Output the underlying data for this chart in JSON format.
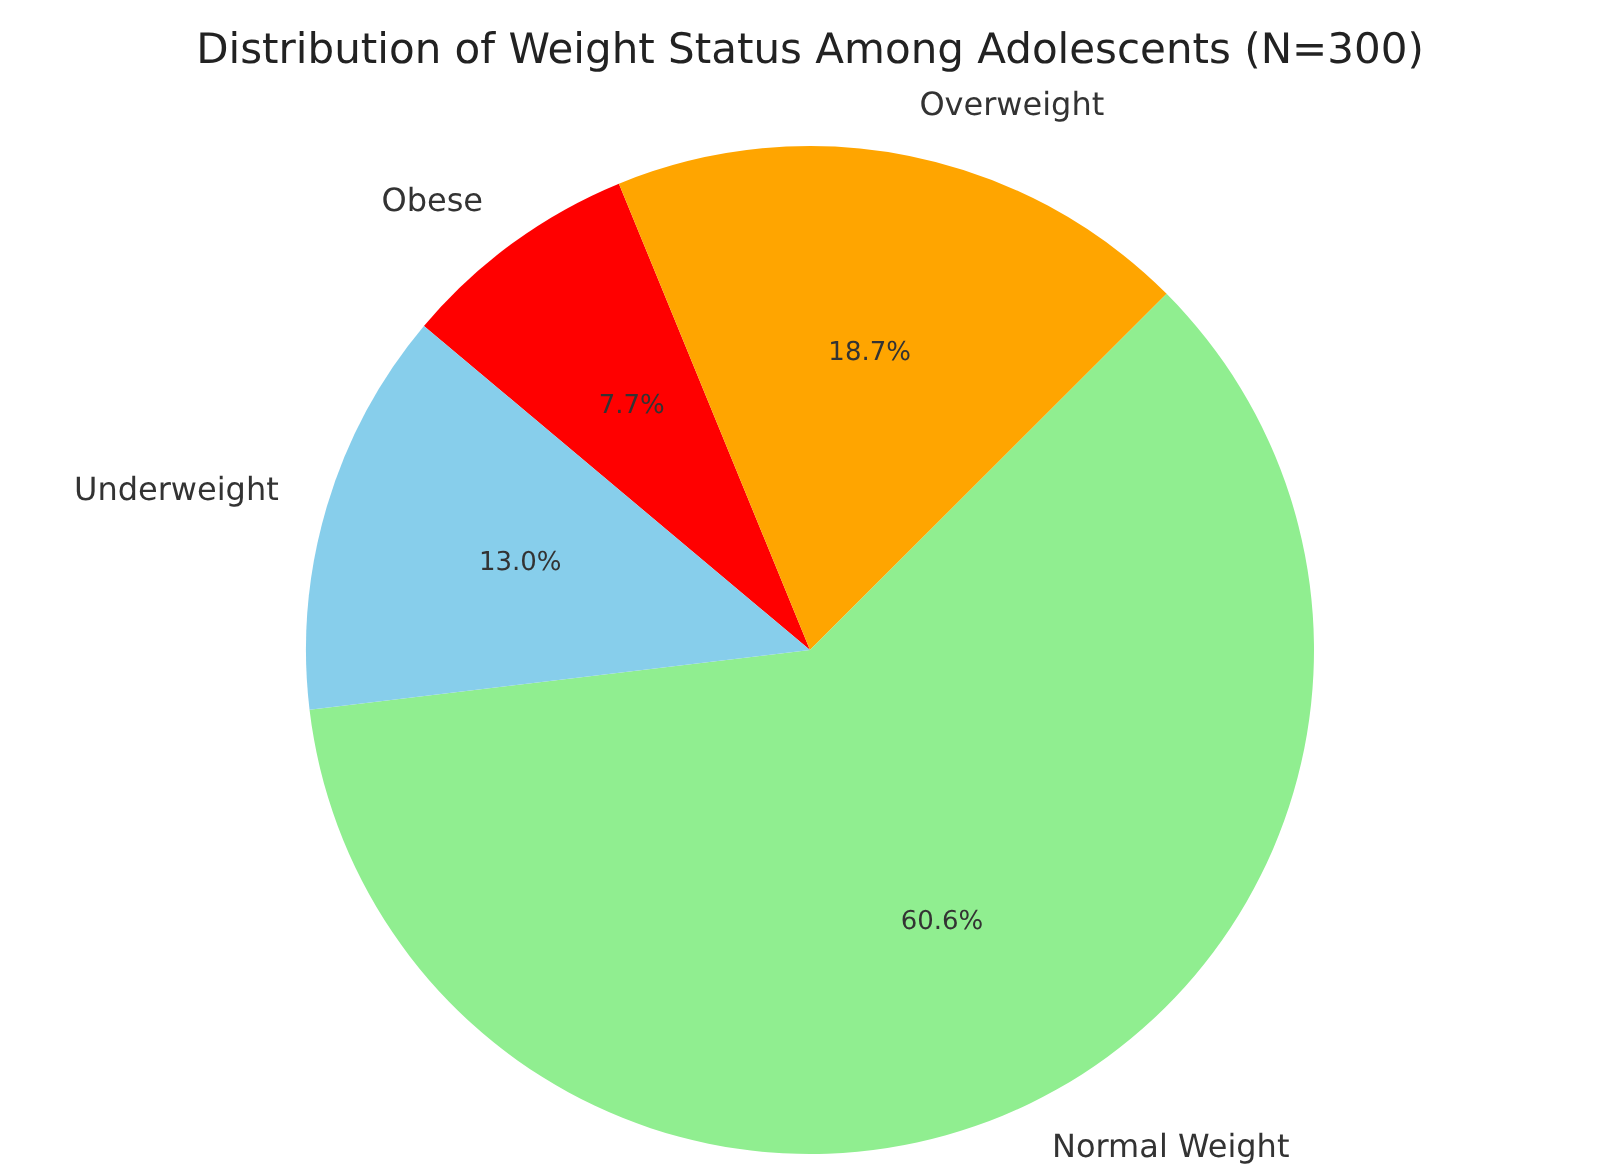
{
  "chart_data": {
    "type": "pie",
    "title": "Distribution of Weight Status Among Adolescents (N=300)",
    "categories": [
      "Obese",
      "Overweight",
      "Normal Weight",
      "Underweight"
    ],
    "values": [
      7.7,
      18.7,
      60.6,
      13.0
    ],
    "colors": [
      "#ff0000",
      "#ffa500",
      "#90ee90",
      "#87ceeb"
    ],
    "value_labels": [
      "7.7%",
      "18.7%",
      "60.6%",
      "13.0%"
    ],
    "legend": false
  }
}
